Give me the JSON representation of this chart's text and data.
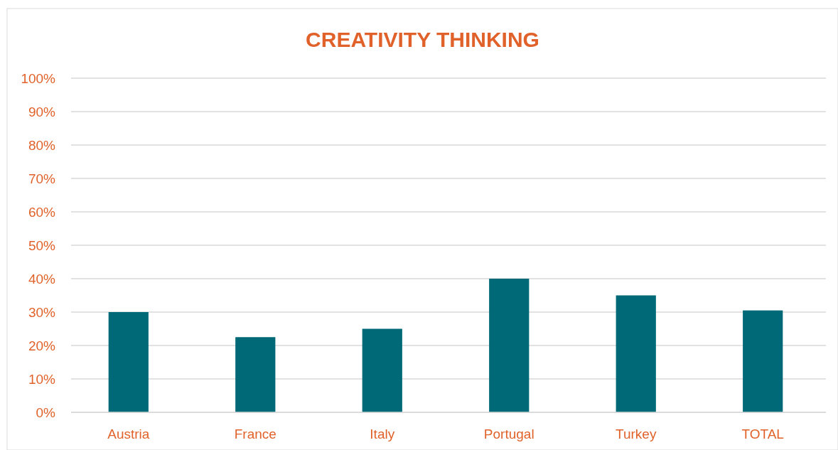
{
  "chart_data": {
    "type": "bar",
    "title": "CREATIVITY THINKING",
    "categories": [
      "Austria",
      "France",
      "Italy",
      "Portugal",
      "Turkey",
      "TOTAL"
    ],
    "values": [
      30,
      22.5,
      25,
      40,
      35,
      30.5
    ],
    "color": "#006977",
    "ylim": [
      0,
      100
    ],
    "yticks": [
      {
        "value": 0,
        "label": "0%"
      },
      {
        "value": 10,
        "label": "10%"
      },
      {
        "value": 20,
        "label": "20%"
      },
      {
        "value": 30,
        "label": "30%"
      },
      {
        "value": 40,
        "label": "40%"
      },
      {
        "value": 50,
        "label": "50%"
      },
      {
        "value": 60,
        "label": "60%"
      },
      {
        "value": 70,
        "label": "70%"
      },
      {
        "value": 80,
        "label": "80%"
      },
      {
        "value": 90,
        "label": "90%"
      },
      {
        "value": 100,
        "label": "100%"
      }
    ],
    "grid": "y"
  }
}
